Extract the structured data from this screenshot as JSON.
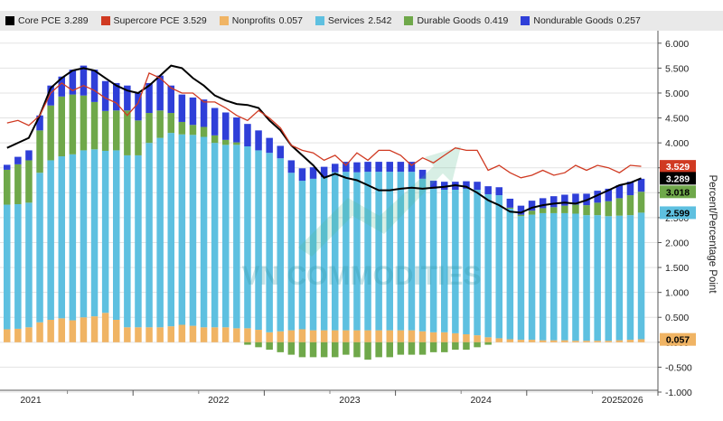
{
  "legend": [
    {
      "name": "Core PCE",
      "value": "3.289",
      "color": "#000000"
    },
    {
      "name": "Supercore PCE",
      "value": "3.529",
      "color": "#d03a22"
    },
    {
      "name": "Nonprofits",
      "value": "0.057",
      "color": "#f0b464"
    },
    {
      "name": "Services",
      "value": "2.542",
      "color": "#5ec0e0"
    },
    {
      "name": "Durable Goods",
      "value": "0.419",
      "color": "#6fa84a"
    },
    {
      "name": "Nondurable Goods",
      "value": "0.257",
      "color": "#2f3fd8"
    }
  ],
  "watermark": "VN COMMODITIES",
  "chart_data": {
    "type": "bar",
    "stacked": true,
    "ylabel": "Percent/Percentage Point",
    "ylim": [
      -1.0,
      6.25
    ],
    "y_ticks": [
      "6.000",
      "5.500",
      "5.000",
      "4.500",
      "4.000",
      "3.500",
      "3.000",
      "2.500",
      "2.000",
      "1.500",
      "1.000",
      "0.500",
      "0.000",
      "-0.500",
      "-1.000"
    ],
    "x_tick_labels": [
      "2021",
      "2022",
      "2023",
      "2024",
      "2025",
      "2026"
    ],
    "grid": true,
    "axis_side": "right",
    "x_start": "2021-01",
    "series": [
      {
        "name": "Nonprofits",
        "color": "#f0b464",
        "values": [
          0.26,
          0.27,
          0.3,
          0.4,
          0.45,
          0.48,
          0.44,
          0.5,
          0.52,
          0.59,
          0.45,
          0.3,
          0.3,
          0.3,
          0.3,
          0.32,
          0.35,
          0.33,
          0.3,
          0.3,
          0.3,
          0.28,
          0.28,
          0.25,
          0.2,
          0.22,
          0.24,
          0.26,
          0.24,
          0.24,
          0.24,
          0.24,
          0.24,
          0.24,
          0.24,
          0.24,
          0.24,
          0.24,
          0.22,
          0.2,
          0.2,
          0.18,
          0.16,
          0.14,
          0.1,
          0.08,
          0.06,
          0.05,
          0.05,
          0.04,
          0.04,
          0.04,
          0.03,
          0.03,
          0.03,
          0.03,
          0.04,
          0.05,
          0.06
        ]
      },
      {
        "name": "Services",
        "color": "#5ec0e0",
        "values": [
          2.5,
          2.5,
          2.5,
          3.0,
          3.2,
          3.25,
          3.33,
          3.35,
          3.35,
          3.25,
          3.4,
          3.45,
          3.45,
          3.7,
          3.8,
          3.88,
          3.82,
          3.83,
          3.82,
          3.7,
          3.66,
          3.68,
          3.65,
          3.6,
          3.6,
          3.47,
          3.16,
          2.98,
          3.04,
          3.07,
          3.17,
          3.18,
          3.17,
          3.18,
          3.18,
          3.18,
          3.18,
          3.18,
          3.06,
          2.88,
          2.86,
          2.88,
          2.92,
          2.92,
          2.87,
          2.87,
          2.62,
          2.48,
          2.51,
          2.55,
          2.55,
          2.55,
          2.55,
          2.52,
          2.52,
          2.5,
          2.5,
          2.5,
          2.54
        ]
      },
      {
        "name": "Durable Goods",
        "color": "#6fa84a",
        "values": [
          0.7,
          0.8,
          0.85,
          0.85,
          1.1,
          1.2,
          1.2,
          1.1,
          0.95,
          0.8,
          0.8,
          0.9,
          0.7,
          0.6,
          0.55,
          0.4,
          0.25,
          0.2,
          0.2,
          0.15,
          0.1,
          0.05,
          -0.05,
          -0.1,
          -0.15,
          -0.2,
          -0.25,
          -0.3,
          -0.3,
          -0.3,
          -0.3,
          -0.25,
          -0.3,
          -0.35,
          -0.3,
          -0.3,
          -0.25,
          -0.25,
          -0.25,
          -0.2,
          -0.2,
          -0.15,
          -0.15,
          -0.1,
          -0.05,
          0.0,
          0.02,
          0.03,
          0.08,
          0.1,
          0.12,
          0.15,
          0.18,
          0.2,
          0.25,
          0.3,
          0.35,
          0.4,
          0.42
        ]
      },
      {
        "name": "Nondurable Goods",
        "color": "#2f3fd8",
        "values": [
          0.1,
          0.15,
          0.2,
          0.3,
          0.4,
          0.4,
          0.5,
          0.6,
          0.65,
          0.6,
          0.55,
          0.5,
          0.55,
          0.6,
          0.7,
          0.55,
          0.55,
          0.55,
          0.55,
          0.55,
          0.55,
          0.5,
          0.45,
          0.4,
          0.3,
          0.25,
          0.25,
          0.25,
          0.23,
          0.21,
          0.17,
          0.2,
          0.2,
          0.2,
          0.2,
          0.2,
          0.2,
          0.2,
          0.18,
          0.16,
          0.16,
          0.16,
          0.15,
          0.16,
          0.16,
          0.16,
          0.18,
          0.18,
          0.2,
          0.2,
          0.22,
          0.22,
          0.22,
          0.23,
          0.24,
          0.25,
          0.26,
          0.27,
          0.26
        ]
      },
      {
        "name": "Core PCE",
        "color": "#000000",
        "type": "line",
        "values": [
          3.9,
          4.0,
          4.1,
          4.55,
          5.1,
          5.3,
          5.45,
          5.5,
          5.45,
          5.3,
          5.15,
          5.05,
          5.0,
          5.15,
          5.35,
          5.55,
          5.5,
          5.3,
          5.15,
          4.95,
          4.85,
          4.78,
          4.76,
          4.7,
          4.45,
          4.25,
          3.95,
          3.75,
          3.55,
          3.3,
          3.38,
          3.3,
          3.25,
          3.15,
          3.05,
          3.05,
          3.08,
          3.1,
          3.08,
          3.1,
          3.12,
          3.15,
          3.12,
          3.0,
          2.85,
          2.75,
          2.62,
          2.6,
          2.7,
          2.75,
          2.78,
          2.8,
          2.78,
          2.85,
          2.95,
          3.05,
          3.15,
          3.2,
          3.29
        ]
      },
      {
        "name": "Supercore PCE",
        "color": "#d03a22",
        "type": "line",
        "values": [
          4.4,
          4.45,
          4.35,
          4.55,
          5.0,
          5.2,
          5.05,
          5.15,
          5.05,
          4.9,
          4.8,
          4.55,
          4.8,
          5.4,
          5.3,
          5.1,
          5.0,
          5.0,
          4.82,
          4.82,
          4.7,
          4.55,
          4.45,
          4.65,
          4.5,
          4.3,
          3.95,
          3.85,
          3.8,
          3.65,
          3.75,
          3.55,
          3.8,
          3.65,
          3.85,
          3.85,
          3.75,
          3.55,
          3.7,
          3.6,
          3.75,
          3.9,
          3.85,
          3.85,
          3.45,
          3.55,
          3.4,
          3.3,
          3.35,
          3.45,
          3.35,
          3.4,
          3.55,
          3.45,
          3.55,
          3.5,
          3.4,
          3.55,
          3.53
        ]
      }
    ],
    "value_labels": [
      {
        "text": "3.529",
        "y": 3.529,
        "color": "#d03a22",
        "text_color": "#ffffff"
      },
      {
        "text": "3.289",
        "y": 3.289,
        "color": "#000000",
        "text_color": "#ffffff"
      },
      {
        "text": "3.018",
        "y": 3.018,
        "color": "#6fa84a",
        "text_color": "#000000"
      },
      {
        "text": "2.599",
        "y": 2.599,
        "color": "#5ec0e0",
        "text_color": "#000000"
      },
      {
        "text": "0.057",
        "y": 0.057,
        "color": "#f0b464",
        "text_color": "#000000"
      }
    ]
  }
}
